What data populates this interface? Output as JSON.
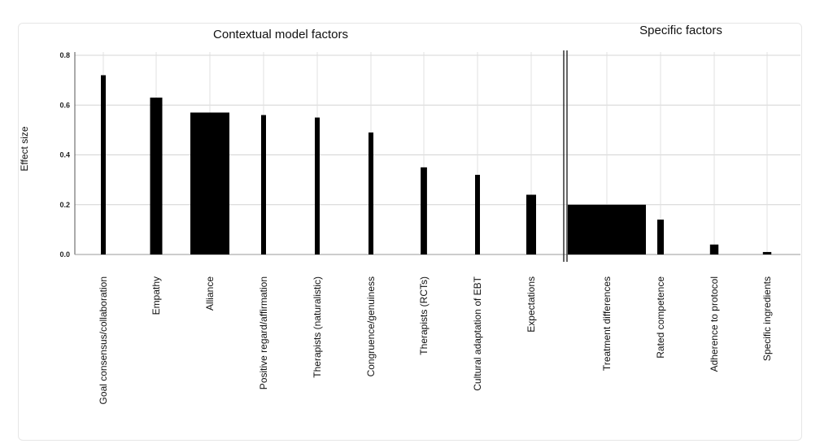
{
  "chart_data": {
    "type": "bar",
    "groups": [
      {
        "title": "Contextual model factors",
        "categories": [
          "Goal consensus/collaboration",
          "Empathy",
          "Alliance",
          "Positive regard/affirmation",
          "Therapists  (naturalistic)",
          "Congruence/genuiness",
          "Therapists  (RCTs)",
          "Cultural adaptation of EBT",
          "Expectations"
        ],
        "values": [
          0.72,
          0.63,
          0.57,
          0.56,
          0.55,
          0.49,
          0.35,
          0.32,
          0.24
        ],
        "relative_widths": [
          1,
          2.5,
          8,
          1,
          1,
          1,
          1.3,
          1,
          2
        ]
      },
      {
        "title": "Specific factors",
        "categories": [
          "Treatment differences",
          "Rated competence",
          "Adherence to protocol",
          "Specific ingredients"
        ],
        "values": [
          0.2,
          0.14,
          0.04,
          0.01
        ],
        "relative_widths": [
          12,
          1,
          1.3,
          1.3
        ]
      }
    ],
    "ylabel": "Effect size",
    "ylim": [
      0,
      0.8
    ],
    "yticks": [
      "0.0",
      "0.2",
      "0.4",
      "0.6",
      "0.8"
    ],
    "grid": true,
    "bar_color": "#000000"
  }
}
